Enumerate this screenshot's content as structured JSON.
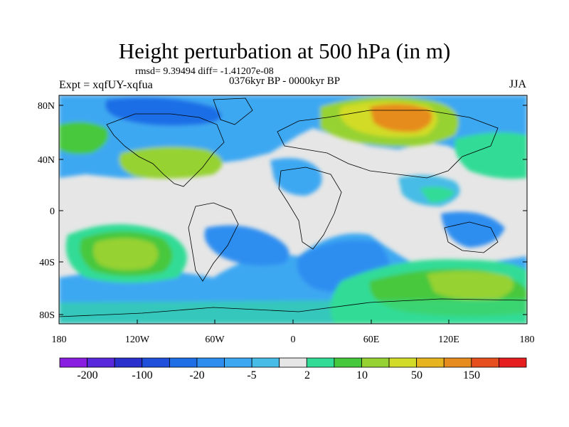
{
  "title": "Height perturbation at 500 hPa (in m)",
  "stats": "rmsd= 9.39494 diff= -1.41207e-08",
  "experiment": "Expt = xqfUY-xqfua",
  "period": "0376kyr BP - 0000kyr BP",
  "season": "JJA",
  "lat_ticks": [
    "80N",
    "40N",
    "0",
    "40S",
    "80S"
  ],
  "lon_ticks": [
    "180",
    "120W",
    "60W",
    "0",
    "60E",
    "120E",
    "180"
  ],
  "colorbar": {
    "colors": [
      "#8a1ee0",
      "#5a28dc",
      "#2a30cc",
      "#1e50dc",
      "#1e6ee6",
      "#2d8ef0",
      "#3ca8f2",
      "#46bce6",
      "#e6e6e6",
      "#32dc96",
      "#46c83c",
      "#96d232",
      "#d2dc28",
      "#e6b41e",
      "#e68c1e",
      "#e6501e",
      "#e61e1e"
    ],
    "labels": [
      "-200",
      "-100",
      "-20",
      "-5",
      "2",
      "10",
      "50",
      "150"
    ]
  },
  "palette": {
    "neutral": "#e6e6e6",
    "blue_deep": "#1e50dc",
    "blue": "#2d8ef0",
    "cyan": "#3ca8f2",
    "teal": "#32dc96",
    "green": "#46c83c",
    "yellowgreen": "#96d232",
    "yellow": "#d2dc28",
    "orange": "#e68c1e"
  }
}
